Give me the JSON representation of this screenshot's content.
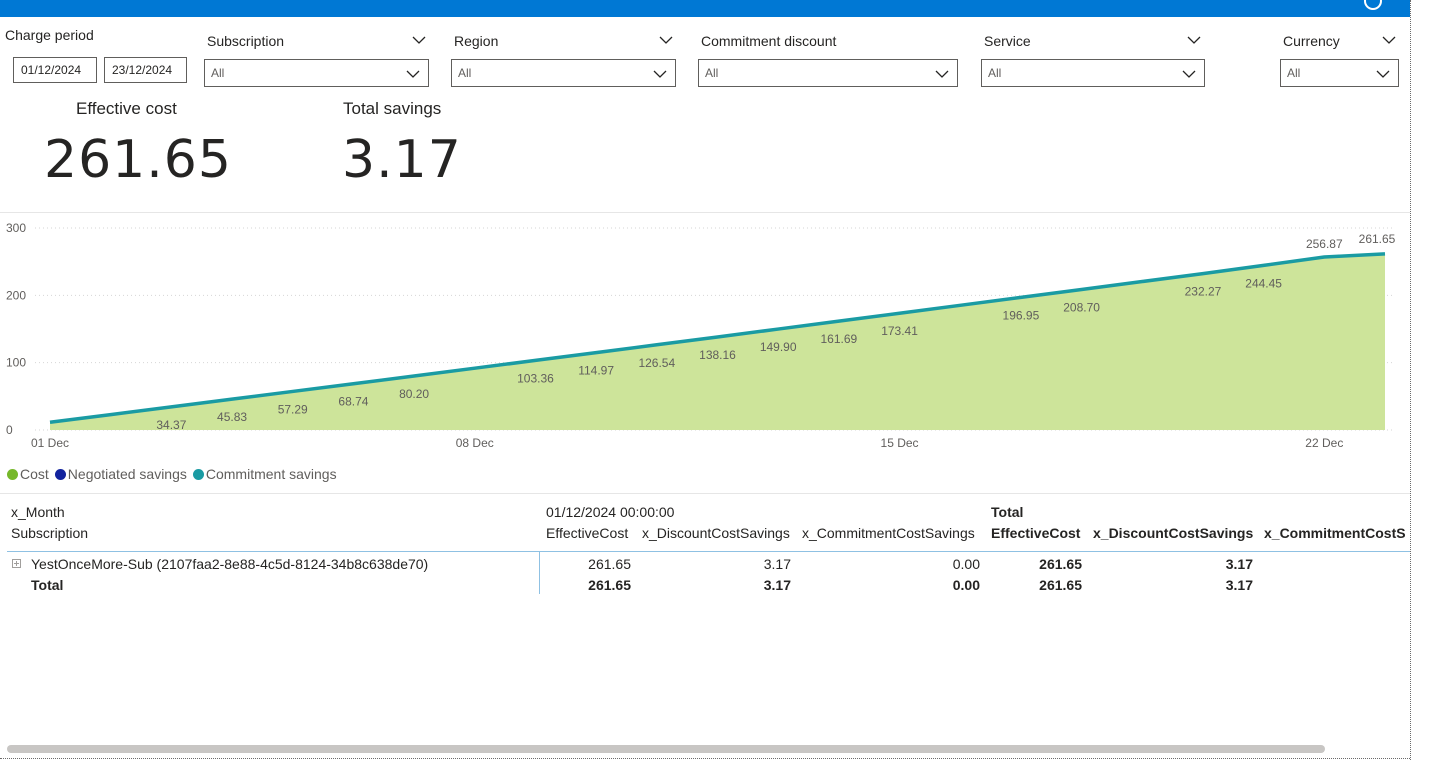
{
  "filters": {
    "charge_period": {
      "label": "Charge period",
      "start": "01/12/2024",
      "end": "23/12/2024"
    },
    "dropdowns": [
      {
        "label": "Subscription",
        "value": "All"
      },
      {
        "label": "Region",
        "value": "All"
      },
      {
        "label": "Commitment discount",
        "value": "All"
      },
      {
        "label": "Service",
        "value": "All"
      },
      {
        "label": "Currency",
        "value": "All"
      }
    ]
  },
  "kpis": {
    "effective_cost": {
      "title": "Effective cost",
      "value": "261.65"
    },
    "total_savings": {
      "title": "Total savings",
      "value": "3.17"
    }
  },
  "chart_data": {
    "type": "area",
    "x": [
      "01 Dec",
      "02 Dec",
      "03 Dec",
      "04 Dec",
      "05 Dec",
      "06 Dec",
      "07 Dec",
      "08 Dec",
      "09 Dec",
      "10 Dec",
      "11 Dec",
      "12 Dec",
      "13 Dec",
      "14 Dec",
      "15 Dec",
      "16 Dec",
      "17 Dec",
      "18 Dec",
      "19 Dec",
      "20 Dec",
      "21 Dec",
      "22 Dec",
      "23 Dec"
    ],
    "x_ticks": [
      "01 Dec",
      "08 Dec",
      "15 Dec",
      "22 Dec"
    ],
    "ylim": [
      0,
      300
    ],
    "y_ticks": [
      0,
      100,
      200,
      300
    ],
    "grid": true,
    "series": [
      {
        "name": "Cost",
        "color": "#cde49a",
        "values": [
          11.5,
          22.9,
          34.37,
          45.83,
          57.29,
          68.74,
          80.2,
          91.8,
          103.36,
          114.97,
          126.54,
          138.16,
          149.9,
          161.69,
          173.41,
          185.2,
          196.95,
          208.7,
          220.5,
          232.27,
          244.45,
          256.87,
          261.65
        ]
      },
      {
        "name": "Commitment savings",
        "color": "#1a9ba3",
        "values": [
          11.5,
          22.9,
          34.37,
          45.83,
          57.29,
          68.74,
          80.2,
          91.8,
          103.36,
          114.97,
          126.54,
          138.16,
          149.9,
          161.69,
          173.41,
          185.2,
          196.95,
          208.7,
          220.5,
          232.27,
          244.45,
          256.87,
          261.65
        ]
      }
    ],
    "data_labels": [
      {
        "i": 2,
        "text": "34.37"
      },
      {
        "i": 3,
        "text": "45.83"
      },
      {
        "i": 4,
        "text": "57.29"
      },
      {
        "i": 5,
        "text": "68.74"
      },
      {
        "i": 6,
        "text": "80.20"
      },
      {
        "i": 8,
        "text": "103.36"
      },
      {
        "i": 9,
        "text": "114.97"
      },
      {
        "i": 10,
        "text": "126.54"
      },
      {
        "i": 11,
        "text": "138.16"
      },
      {
        "i": 12,
        "text": "149.90"
      },
      {
        "i": 13,
        "text": "161.69"
      },
      {
        "i": 14,
        "text": "173.41"
      },
      {
        "i": 16,
        "text": "196.95"
      },
      {
        "i": 17,
        "text": "208.70"
      },
      {
        "i": 19,
        "text": "232.27"
      },
      {
        "i": 20,
        "text": "244.45"
      },
      {
        "i": 21,
        "text": "256.87"
      },
      {
        "i": 22,
        "text": "261.65"
      }
    ],
    "legend": [
      {
        "name": "Cost",
        "color": "#76b82a"
      },
      {
        "name": "Negotiated savings",
        "color": "#12239e"
      },
      {
        "name": "Commitment savings",
        "color": "#1a9ba3"
      }
    ]
  },
  "table": {
    "row_header_1": "x_Month",
    "row_header_2": "Subscription",
    "group_1": "01/12/2024 00:00:00",
    "group_2": "Total",
    "columns": [
      "EffectiveCost",
      "x_DiscountCostSavings",
      "x_CommitmentCostSavings"
    ],
    "total_columns": [
      "EffectiveCost",
      "x_DiscountCostSavings",
      "x_CommitmentCostS"
    ],
    "rows": [
      {
        "name": "YestOnceMore-Sub (2107faa2-8e88-4c5d-8124-34b8c638de70)",
        "values": [
          "261.65",
          "3.17",
          "0.00"
        ],
        "totals": [
          "261.65",
          "3.17",
          ""
        ]
      }
    ],
    "total_row": {
      "name": "Total",
      "values": [
        "261.65",
        "3.17",
        "0.00"
      ],
      "totals": [
        "261.65",
        "3.17",
        ""
      ]
    }
  }
}
